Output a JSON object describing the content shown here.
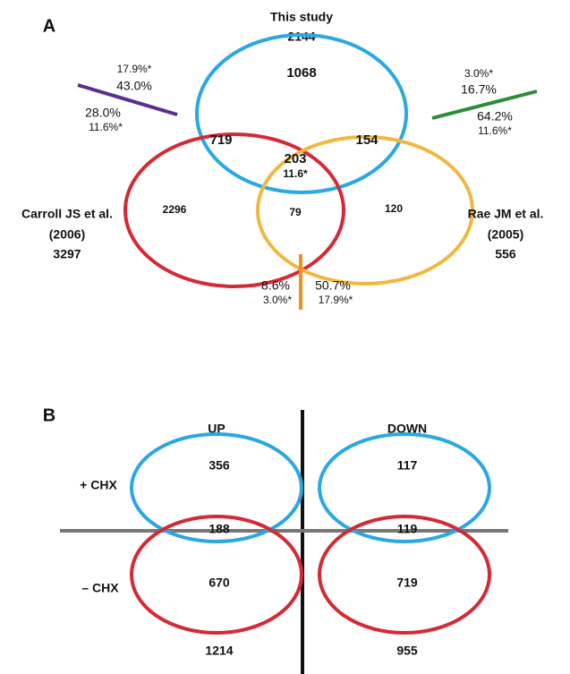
{
  "panel_a": {
    "label": "A",
    "this_study": {
      "name": "This study",
      "count": "2144"
    },
    "carroll": {
      "name": "Carroll JS et al.",
      "year": "(2006)",
      "count": "3297"
    },
    "rae": {
      "name": "Rae JM et al.",
      "year": "(2005)",
      "count": "556"
    },
    "regions": {
      "study_only": "1068",
      "study_carroll": "719",
      "study_rae": "154",
      "all_three": "203",
      "all_three_pct": "11.6*",
      "carroll_only": "2296",
      "carroll_rae": "79",
      "rae_only": "120"
    },
    "left_annotation": {
      "top_star": "17.9%*",
      "top": "43.0%",
      "bottom": "28.0%",
      "bottom_star": "11.6%*"
    },
    "right_annotation": {
      "top_star": "3.0%*",
      "top": "16.7%",
      "bottom": "64.2%",
      "bottom_star": "11.6%*"
    },
    "bottom_annotation": {
      "left": "8.6%",
      "left_star": "3.0%*",
      "right": "50.7%",
      "right_star": "17.9%*"
    }
  },
  "panel_b": {
    "label": "B",
    "columns": [
      "UP",
      "DOWN"
    ],
    "rows": [
      "+ CHX",
      "– CHX"
    ],
    "up": {
      "plus_only": "356",
      "both": "188",
      "minus_only": "670",
      "total": "1214"
    },
    "down": {
      "plus_only": "117",
      "both": "119",
      "minus_only": "719",
      "total": "955"
    }
  }
}
